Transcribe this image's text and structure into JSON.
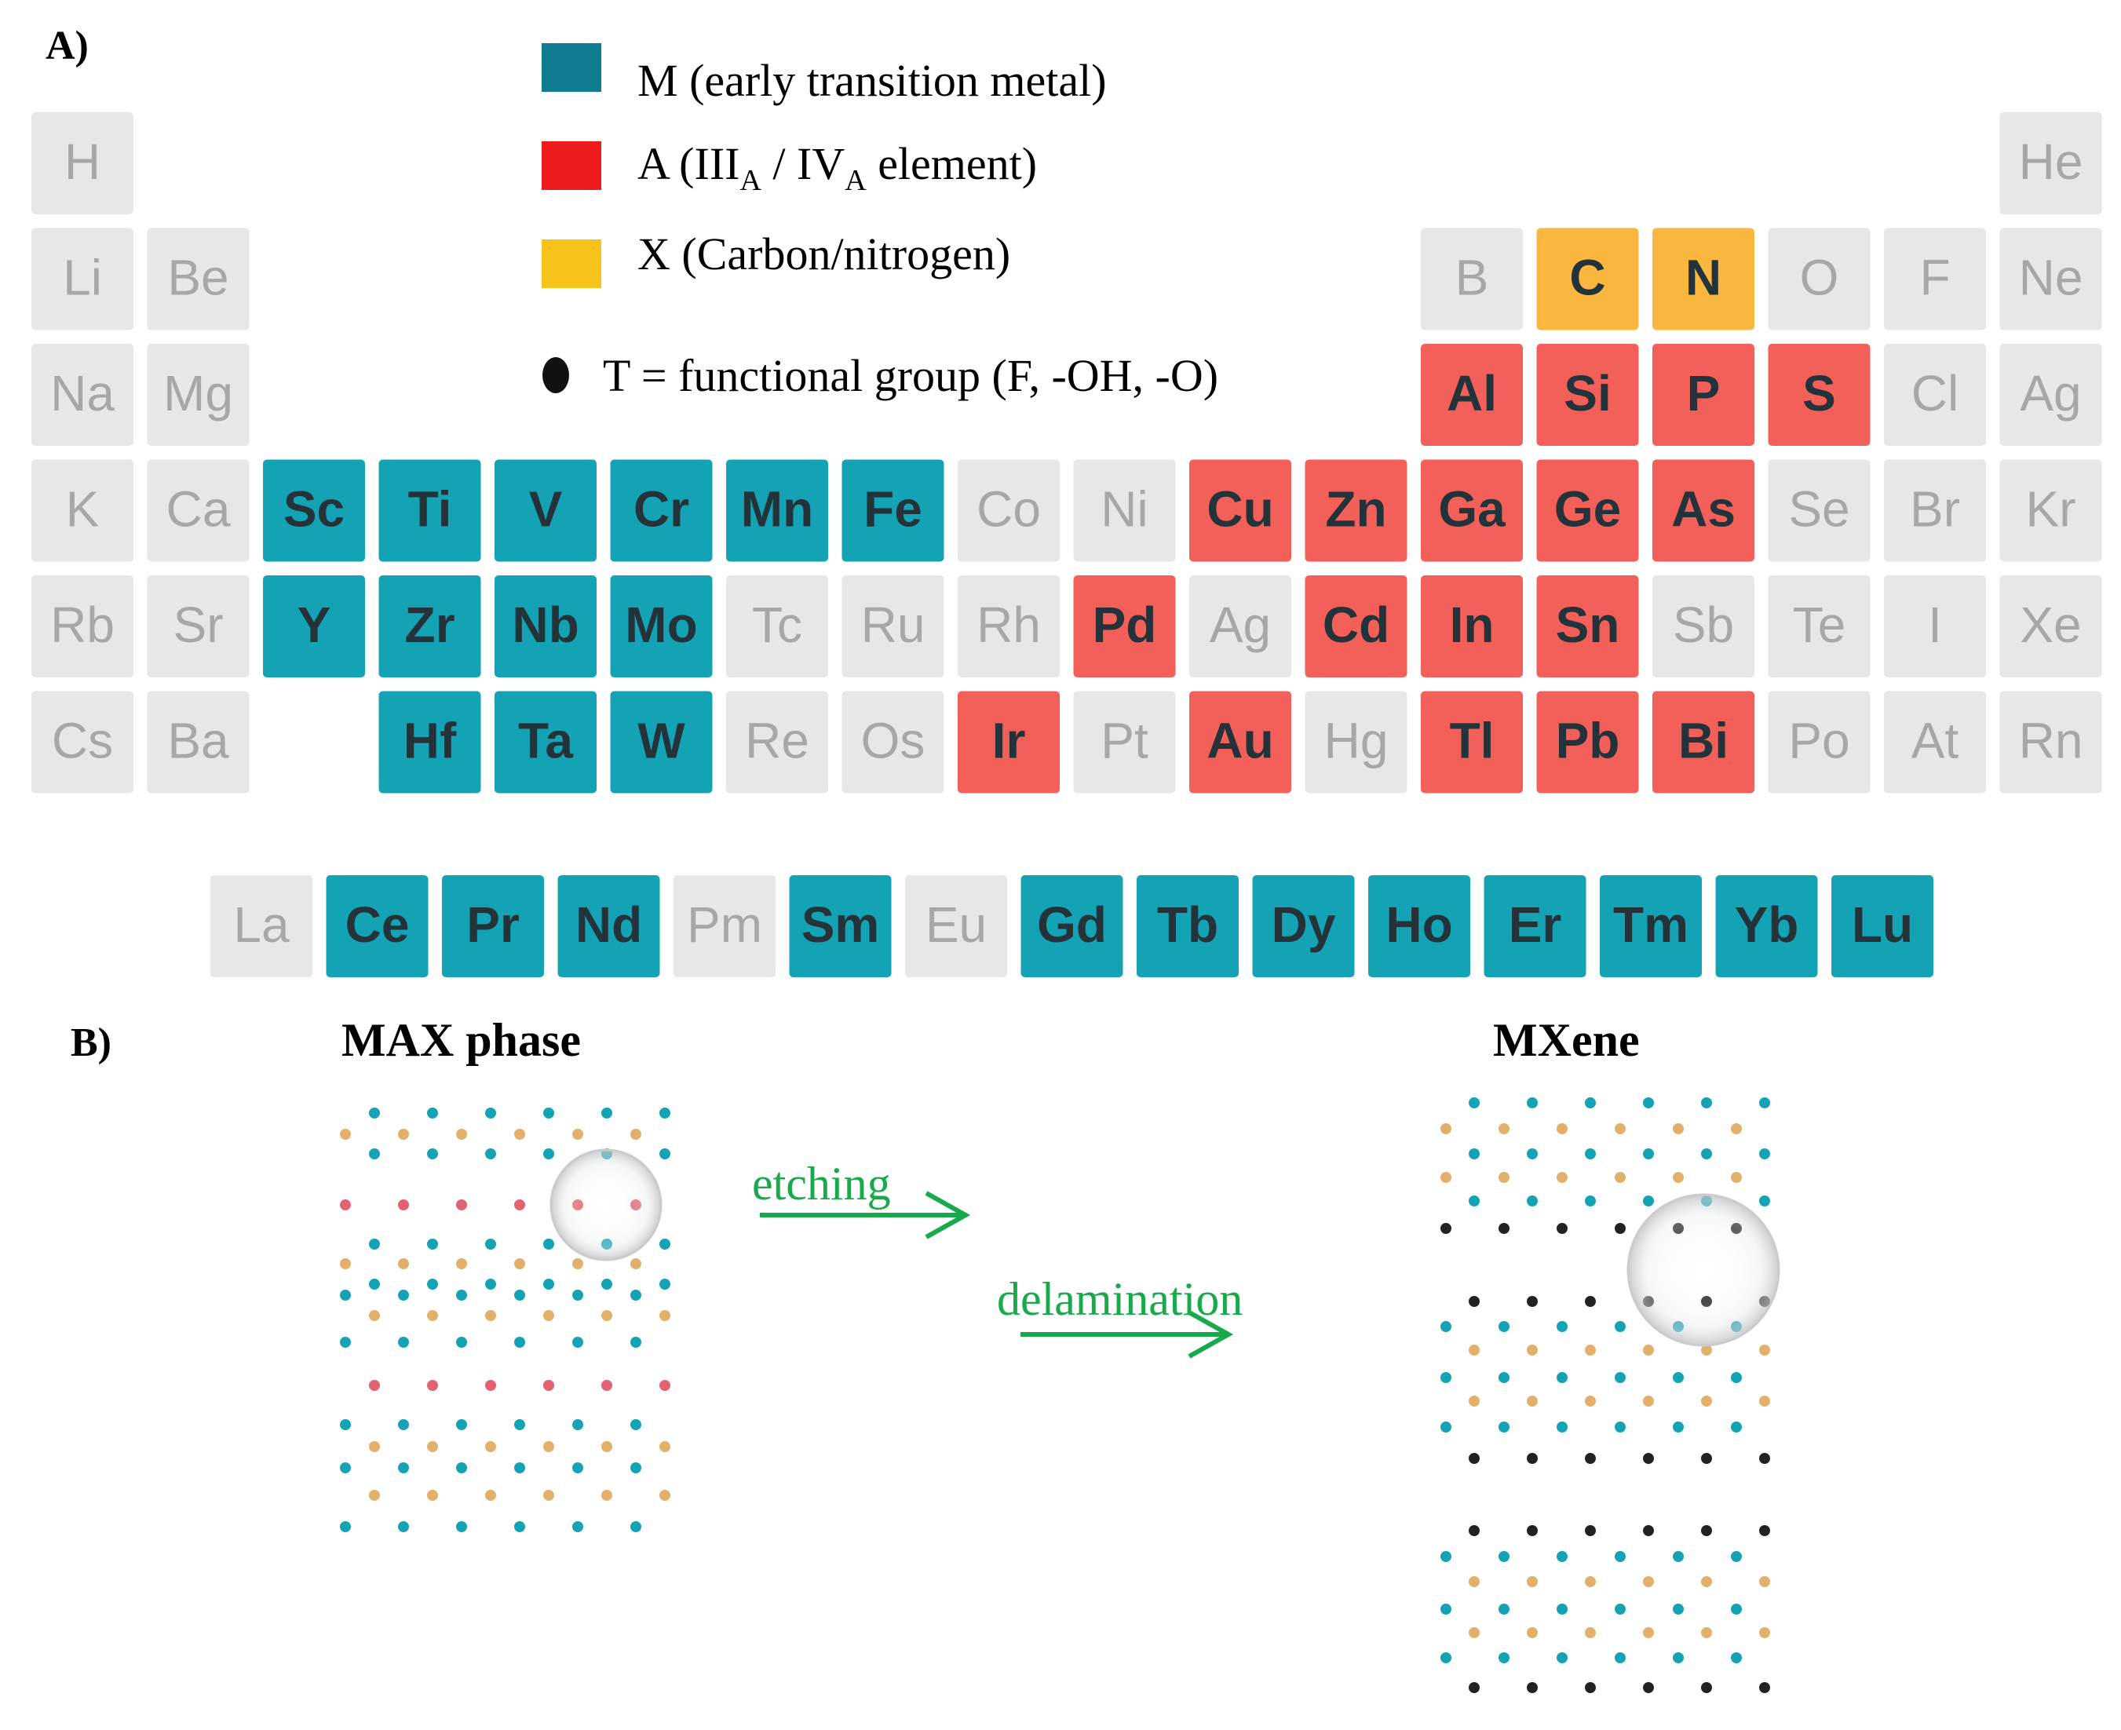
{
  "panel_a": {
    "label": "A)",
    "legend": [
      {
        "key": "M",
        "text": "M (early transition metal)",
        "color": "#0f7c92"
      },
      {
        "key": "A",
        "text_pre": "A (III",
        "sub1": "A",
        "text_mid": " / IV",
        "sub2": "A",
        "text_post": " element)",
        "color": "#ee1c1c"
      },
      {
        "key": "X",
        "text": "X (Carbon/nitrogen)",
        "color": "#f7c21a"
      },
      {
        "key": "T",
        "text": "T = functional group (F, -OH, -O)",
        "color": "#111111"
      }
    ],
    "colors": {
      "M": "#14a3b4",
      "A": "#f3605a",
      "X": "#f9b73f",
      "none": "#e6e7e8",
      "none_text": "#a5a7aa",
      "cell_text": "#24333a"
    },
    "periodic_table": [
      [
        "H",
        "",
        "",
        "",
        "",
        "",
        "",
        "",
        "",
        "",
        "",
        "",
        "",
        "",
        "",
        "",
        "",
        "He"
      ],
      [
        "Li",
        "Be",
        "",
        "",
        "",
        "",
        "",
        "",
        "",
        "",
        "",
        "",
        "B",
        "C",
        "N",
        "O",
        "F",
        "Ne"
      ],
      [
        "Na",
        "Mg",
        "",
        "",
        "",
        "",
        "",
        "",
        "",
        "",
        "",
        "",
        "Al",
        "Si",
        "P",
        "S",
        "Cl",
        "Ag"
      ],
      [
        "K",
        "Ca",
        "Sc",
        "Ti",
        "V",
        "Cr",
        "Mn",
        "Fe",
        "Co",
        "Ni",
        "Cu",
        "Zn",
        "Ga",
        "Ge",
        "As",
        "Se",
        "Br",
        "Kr"
      ],
      [
        "Rb",
        "Sr",
        "Y",
        "Zr",
        "Nb",
        "Mo",
        "Tc",
        "Ru",
        "Rh",
        "Pd",
        "Ag",
        "Cd",
        "In",
        "Sn",
        "Sb",
        "Te",
        "I",
        "Xe"
      ],
      [
        "Cs",
        "Ba",
        "",
        "Hf",
        "Ta",
        "W",
        "Re",
        "Os",
        "Ir",
        "Pt",
        "Au",
        "Hg",
        "Tl",
        "Pb",
        "Bi",
        "Po",
        "At",
        "Rn"
      ]
    ],
    "lanthanides": [
      "La",
      "Ce",
      "Pr",
      "Nd",
      "Pm",
      "Sm",
      "Eu",
      "Gd",
      "Tb",
      "Dy",
      "Ho",
      "Er",
      "Tm",
      "Yb",
      "Lu"
    ],
    "categories": {
      "M": [
        "Sc",
        "Ti",
        "V",
        "Cr",
        "Mn",
        "Fe",
        "Y",
        "Zr",
        "Nb",
        "Mo",
        "Hf",
        "Ta",
        "W",
        "Ce",
        "Pr",
        "Nd",
        "Sm",
        "Gd",
        "Tb",
        "Dy",
        "Ho",
        "Er",
        "Tm",
        "Yb",
        "Lu"
      ],
      "A": [
        "Al",
        "Si",
        "P",
        "S",
        "Cu",
        "Zn",
        "Ga",
        "Ge",
        "As",
        "Pd",
        "Cd",
        "In",
        "Sn",
        "Ir",
        "Au",
        "Tl",
        "Pb",
        "Bi"
      ],
      "X": [
        "C",
        "N"
      ]
    }
  },
  "panel_b": {
    "label": "B)",
    "max_title": "MAX phase",
    "mxene_title": "MXene",
    "arrow1_label": "etching",
    "arrow2_label": "delamination",
    "arrow_color": "#17a94a",
    "dot_colors": {
      "M": "#14a3b4",
      "X": "#e2b06b",
      "A": "#e36271",
      "T": "#222222"
    }
  }
}
